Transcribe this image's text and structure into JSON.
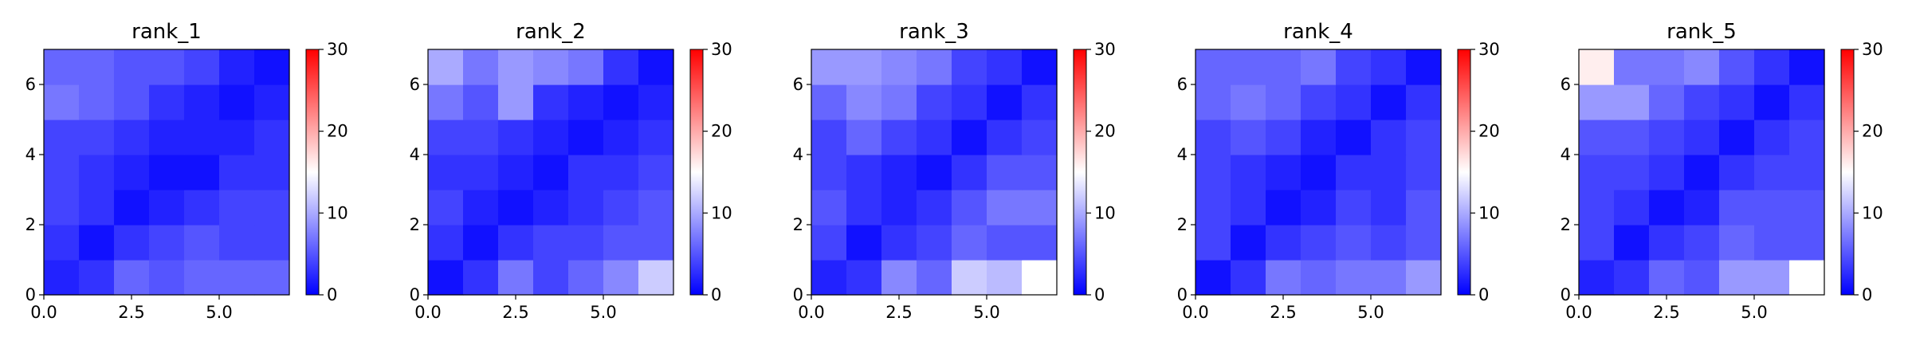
{
  "chart_data": [
    {
      "type": "heatmap",
      "title": "rank_1",
      "xlim": [
        0,
        7
      ],
      "ylim": [
        7,
        0
      ],
      "xticks": [
        "0.0",
        "2.5",
        "5.0"
      ],
      "yticks": [
        "0",
        "2",
        "4",
        "6"
      ],
      "colorbar": {
        "min": 0,
        "max": 30,
        "ticks": [
          "0",
          "10",
          "20",
          "30"
        ],
        "colormap": "bwr"
      },
      "values": [
        [
          2,
          3,
          6,
          5,
          6,
          6,
          6
        ],
        [
          3,
          1,
          3,
          4,
          5,
          4,
          4
        ],
        [
          4,
          3,
          1,
          2,
          3,
          4,
          4
        ],
        [
          4,
          3,
          2,
          1,
          1,
          3,
          3
        ],
        [
          4,
          4,
          3,
          2,
          2,
          2,
          3
        ],
        [
          7,
          6,
          5,
          3,
          2,
          1,
          2
        ],
        [
          6,
          6,
          5,
          5,
          4,
          2,
          1
        ]
      ]
    },
    {
      "type": "heatmap",
      "title": "rank_2",
      "xlim": [
        0,
        7
      ],
      "ylim": [
        7,
        0
      ],
      "xticks": [
        "0.0",
        "2.5",
        "5.0"
      ],
      "yticks": [
        "0",
        "2",
        "4",
        "6"
      ],
      "colorbar": {
        "min": 0,
        "max": 30,
        "ticks": [
          "0",
          "10",
          "20",
          "30"
        ],
        "colormap": "bwr"
      },
      "values": [
        [
          1,
          3,
          7,
          4,
          6,
          8,
          12
        ],
        [
          3,
          1,
          3,
          4,
          4,
          5,
          5
        ],
        [
          4,
          2,
          1,
          2,
          3,
          4,
          5
        ],
        [
          3,
          3,
          2,
          1,
          3,
          3,
          4
        ],
        [
          4,
          4,
          3,
          2,
          1,
          2,
          3
        ],
        [
          7,
          5,
          9,
          3,
          2,
          1,
          2
        ],
        [
          10,
          7,
          9,
          8,
          7,
          3,
          1
        ]
      ]
    },
    {
      "type": "heatmap",
      "title": "rank_3",
      "xlim": [
        0,
        7
      ],
      "ylim": [
        7,
        0
      ],
      "xticks": [
        "0.0",
        "2.5",
        "5.0"
      ],
      "yticks": [
        "0",
        "2",
        "4",
        "6"
      ],
      "colorbar": {
        "min": 0,
        "max": 30,
        "ticks": [
          "0",
          "10",
          "20",
          "30"
        ],
        "colormap": "bwr"
      },
      "values": [
        [
          2,
          3,
          8,
          6,
          12,
          11,
          15
        ],
        [
          4,
          1,
          3,
          4,
          6,
          5,
          5
        ],
        [
          5,
          3,
          2,
          3,
          5,
          7,
          7
        ],
        [
          4,
          3,
          2,
          1,
          3,
          5,
          5
        ],
        [
          4,
          6,
          4,
          3,
          1,
          3,
          4
        ],
        [
          6,
          8,
          7,
          4,
          3,
          1,
          3
        ],
        [
          9,
          9,
          8,
          7,
          4,
          3,
          1
        ]
      ]
    },
    {
      "type": "heatmap",
      "title": "rank_4",
      "xlim": [
        0,
        7
      ],
      "ylim": [
        7,
        0
      ],
      "xticks": [
        "0.0",
        "2.5",
        "5.0"
      ],
      "yticks": [
        "0",
        "2",
        "4",
        "6"
      ],
      "colorbar": {
        "min": 0,
        "max": 30,
        "ticks": [
          "0",
          "10",
          "20",
          "30"
        ],
        "colormap": "bwr"
      },
      "values": [
        [
          1,
          3,
          7,
          6,
          7,
          7,
          9
        ],
        [
          4,
          1,
          3,
          4,
          5,
          4,
          5
        ],
        [
          4,
          3,
          1,
          2,
          4,
          3,
          5
        ],
        [
          4,
          3,
          2,
          1,
          3,
          3,
          4
        ],
        [
          4,
          5,
          4,
          2,
          1,
          3,
          4
        ],
        [
          6,
          7,
          6,
          4,
          3,
          1,
          3
        ],
        [
          6,
          6,
          6,
          7,
          4,
          3,
          1
        ]
      ]
    },
    {
      "type": "heatmap",
      "title": "rank_5",
      "xlim": [
        0,
        7
      ],
      "ylim": [
        7,
        0
      ],
      "xticks": [
        "0.0",
        "2.5",
        "5.0"
      ],
      "yticks": [
        "0",
        "2",
        "4",
        "6"
      ],
      "colorbar": {
        "min": 0,
        "max": 30,
        "ticks": [
          "0",
          "10",
          "20",
          "30"
        ],
        "colormap": "bwr"
      },
      "values": [
        [
          2,
          3,
          6,
          5,
          9,
          9,
          15
        ],
        [
          4,
          1,
          3,
          4,
          6,
          5,
          5
        ],
        [
          4,
          3,
          1,
          2,
          5,
          5,
          5
        ],
        [
          4,
          4,
          3,
          1,
          3,
          4,
          4
        ],
        [
          5,
          5,
          4,
          3,
          1,
          3,
          4
        ],
        [
          9,
          9,
          6,
          4,
          3,
          1,
          3
        ],
        [
          16,
          7,
          7,
          8,
          5,
          3,
          1
        ]
      ]
    }
  ]
}
